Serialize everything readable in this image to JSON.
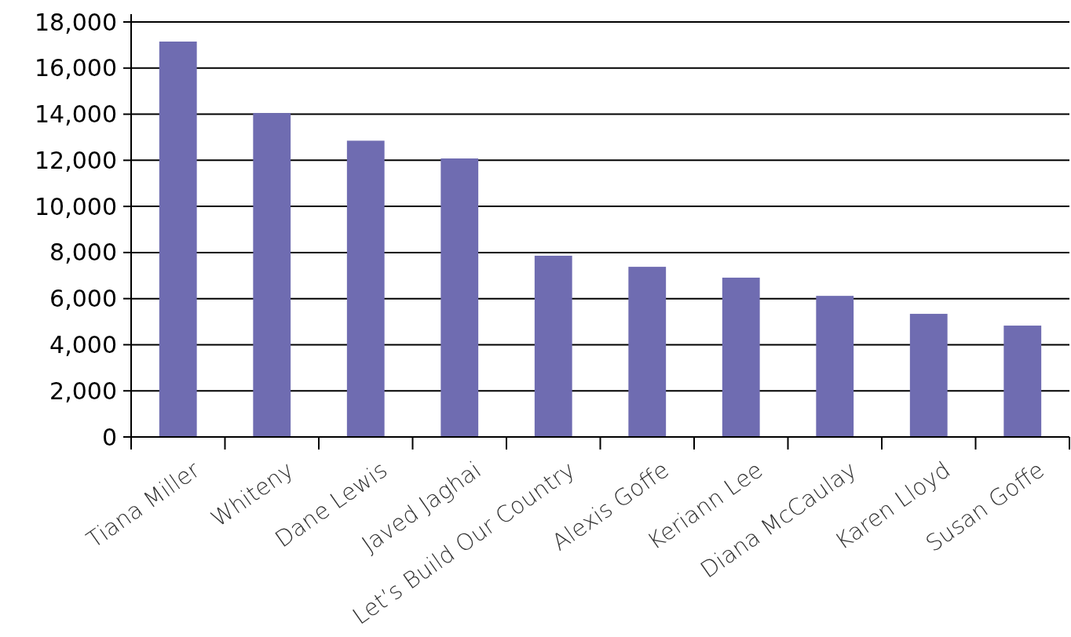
{
  "chart_data": {
    "type": "bar",
    "categories": [
      "Tiana Miller",
      "Whiteny",
      "Dane Lewis",
      "Javed Jaghai",
      "Let’s Build Our Country",
      "Alexis Goffe",
      "Keriann Lee",
      "Diana McCaulay",
      "Karen Lloyd",
      "Susan Goffe"
    ],
    "values": [
      17150,
      14050,
      12850,
      12080,
      7860,
      7380,
      6910,
      6120,
      5340,
      4830
    ],
    "color": "#6f6cb1",
    "ylim": [
      0,
      18000
    ],
    "yticks": [
      {
        "value": 0,
        "label": "0"
      },
      {
        "value": 2000,
        "label": "2,000"
      },
      {
        "value": 4000,
        "label": "4,000"
      },
      {
        "value": 6000,
        "label": "6,000"
      },
      {
        "value": 8000,
        "label": "8,000"
      },
      {
        "value": 10000,
        "label": "10,000"
      },
      {
        "value": 12000,
        "label": "12,000"
      },
      {
        "value": 14000,
        "label": "14,000"
      },
      {
        "value": 16000,
        "label": "16,000"
      },
      {
        "value": 18000,
        "label": "18,000"
      }
    ],
    "grid": "y"
  }
}
